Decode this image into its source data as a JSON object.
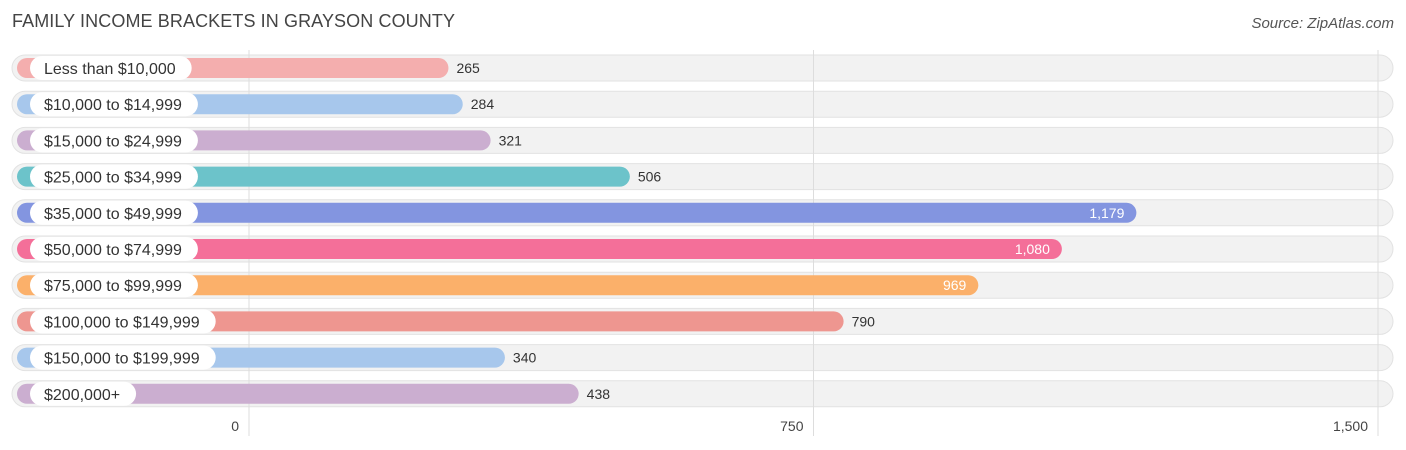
{
  "header": {
    "title": "FAMILY INCOME BRACKETS IN GRAYSON COUNTY",
    "source": "Source: ZipAtlas.com"
  },
  "chart_data": {
    "type": "bar",
    "orientation": "horizontal",
    "title": "FAMILY INCOME BRACKETS IN GRAYSON COUNTY",
    "categories": [
      "Less than $10,000",
      "$10,000 to $14,999",
      "$15,000 to $24,999",
      "$25,000 to $34,999",
      "$35,000 to $49,999",
      "$50,000 to $74,999",
      "$75,000 to $99,999",
      "$100,000 to $149,999",
      "$150,000 to $199,999",
      "$200,000+"
    ],
    "values": [
      265,
      284,
      321,
      506,
      1179,
      1080,
      969,
      790,
      340,
      438
    ],
    "value_labels": [
      "265",
      "284",
      "321",
      "506",
      "1,179",
      "1,080",
      "969",
      "790",
      "340",
      "438"
    ],
    "colors": [
      "#f4aeae",
      "#a7c7ec",
      "#cbaed0",
      "#6cc3ca",
      "#8395e0",
      "#f46f99",
      "#fbb06a",
      "#ee9690",
      "#a7c7ec",
      "#cbaed0"
    ],
    "xlim": [
      0,
      1500
    ],
    "ticks": [
      0,
      750,
      1500
    ],
    "tick_labels": [
      "0",
      "750",
      "1,500"
    ],
    "grid": true,
    "xlabel": "",
    "ylabel": ""
  }
}
